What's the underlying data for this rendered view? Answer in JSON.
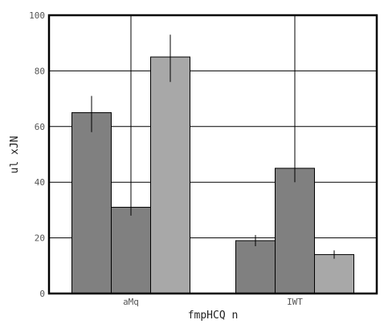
{
  "chart_data": {
    "type": "bar",
    "title": "",
    "xlabel": "fmpHCQ n",
    "ylabel": "ul xJN",
    "categories": [
      "aMq",
      "IWT"
    ],
    "ylim": [
      0,
      100
    ],
    "yticks": [
      0,
      20,
      40,
      60,
      80,
      100
    ],
    "grid": true,
    "series": [
      {
        "color": "#808080",
        "values": [
          65,
          19
        ],
        "error_low": [
          58,
          17
        ],
        "error_high": [
          71,
          21
        ]
      },
      {
        "color": "#808080",
        "values": [
          31,
          45
        ],
        "error_low": [
          28,
          40
        ],
        "error_high": [
          100,
          100
        ]
      },
      {
        "color": "#a8a8a8",
        "values": [
          85,
          14
        ],
        "error_low": [
          76,
          12.5
        ],
        "error_high": [
          93,
          15.5
        ]
      }
    ]
  }
}
